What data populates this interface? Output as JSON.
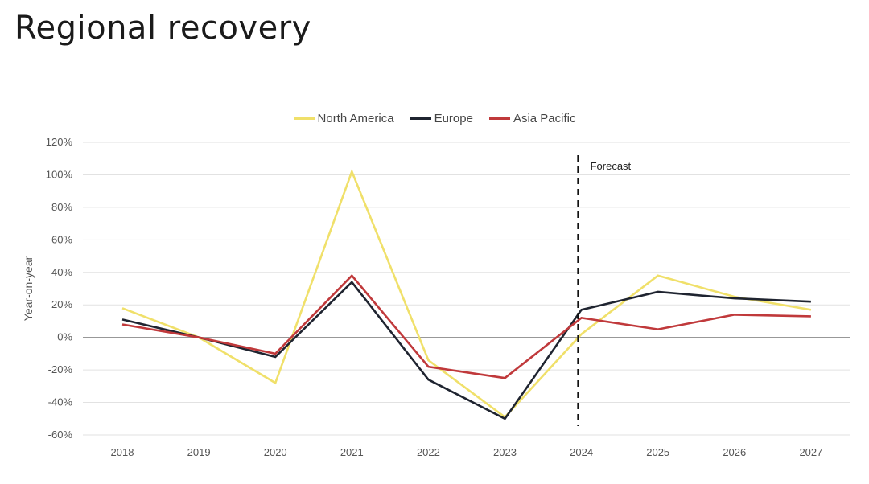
{
  "chart_data": {
    "type": "line",
    "title": "Regional recovery",
    "ylabel": "Year-on-year",
    "xlabel": "",
    "categories": [
      "2018",
      "2019",
      "2020",
      "2021",
      "2022",
      "2023",
      "2024",
      "2025",
      "2026",
      "2027"
    ],
    "yticks": [
      -60,
      -40,
      -20,
      0,
      20,
      40,
      60,
      80,
      100,
      120
    ],
    "ytick_labels": [
      "-60%",
      "-40%",
      "-20%",
      "0%",
      "20%",
      "40%",
      "60%",
      "80%",
      "100%",
      "120%"
    ],
    "ylim": [
      -60,
      120
    ],
    "grid": true,
    "legend_position": "top-center",
    "series": [
      {
        "name": "North America",
        "color": "#f0e06a",
        "values": [
          18,
          0,
          -28,
          102,
          -14,
          -49,
          2,
          38,
          25,
          17
        ]
      },
      {
        "name": "Europe",
        "color": "#1f2430",
        "values": [
          11,
          0,
          -12,
          34,
          -26,
          -50,
          17,
          28,
          24,
          22
        ]
      },
      {
        "name": "Asia Pacific",
        "color": "#c0393b",
        "values": [
          8,
          0,
          -10,
          38,
          -18,
          -25,
          12,
          5,
          14,
          13
        ]
      }
    ],
    "annotation": {
      "text": "Forecast",
      "category": "2024"
    }
  }
}
